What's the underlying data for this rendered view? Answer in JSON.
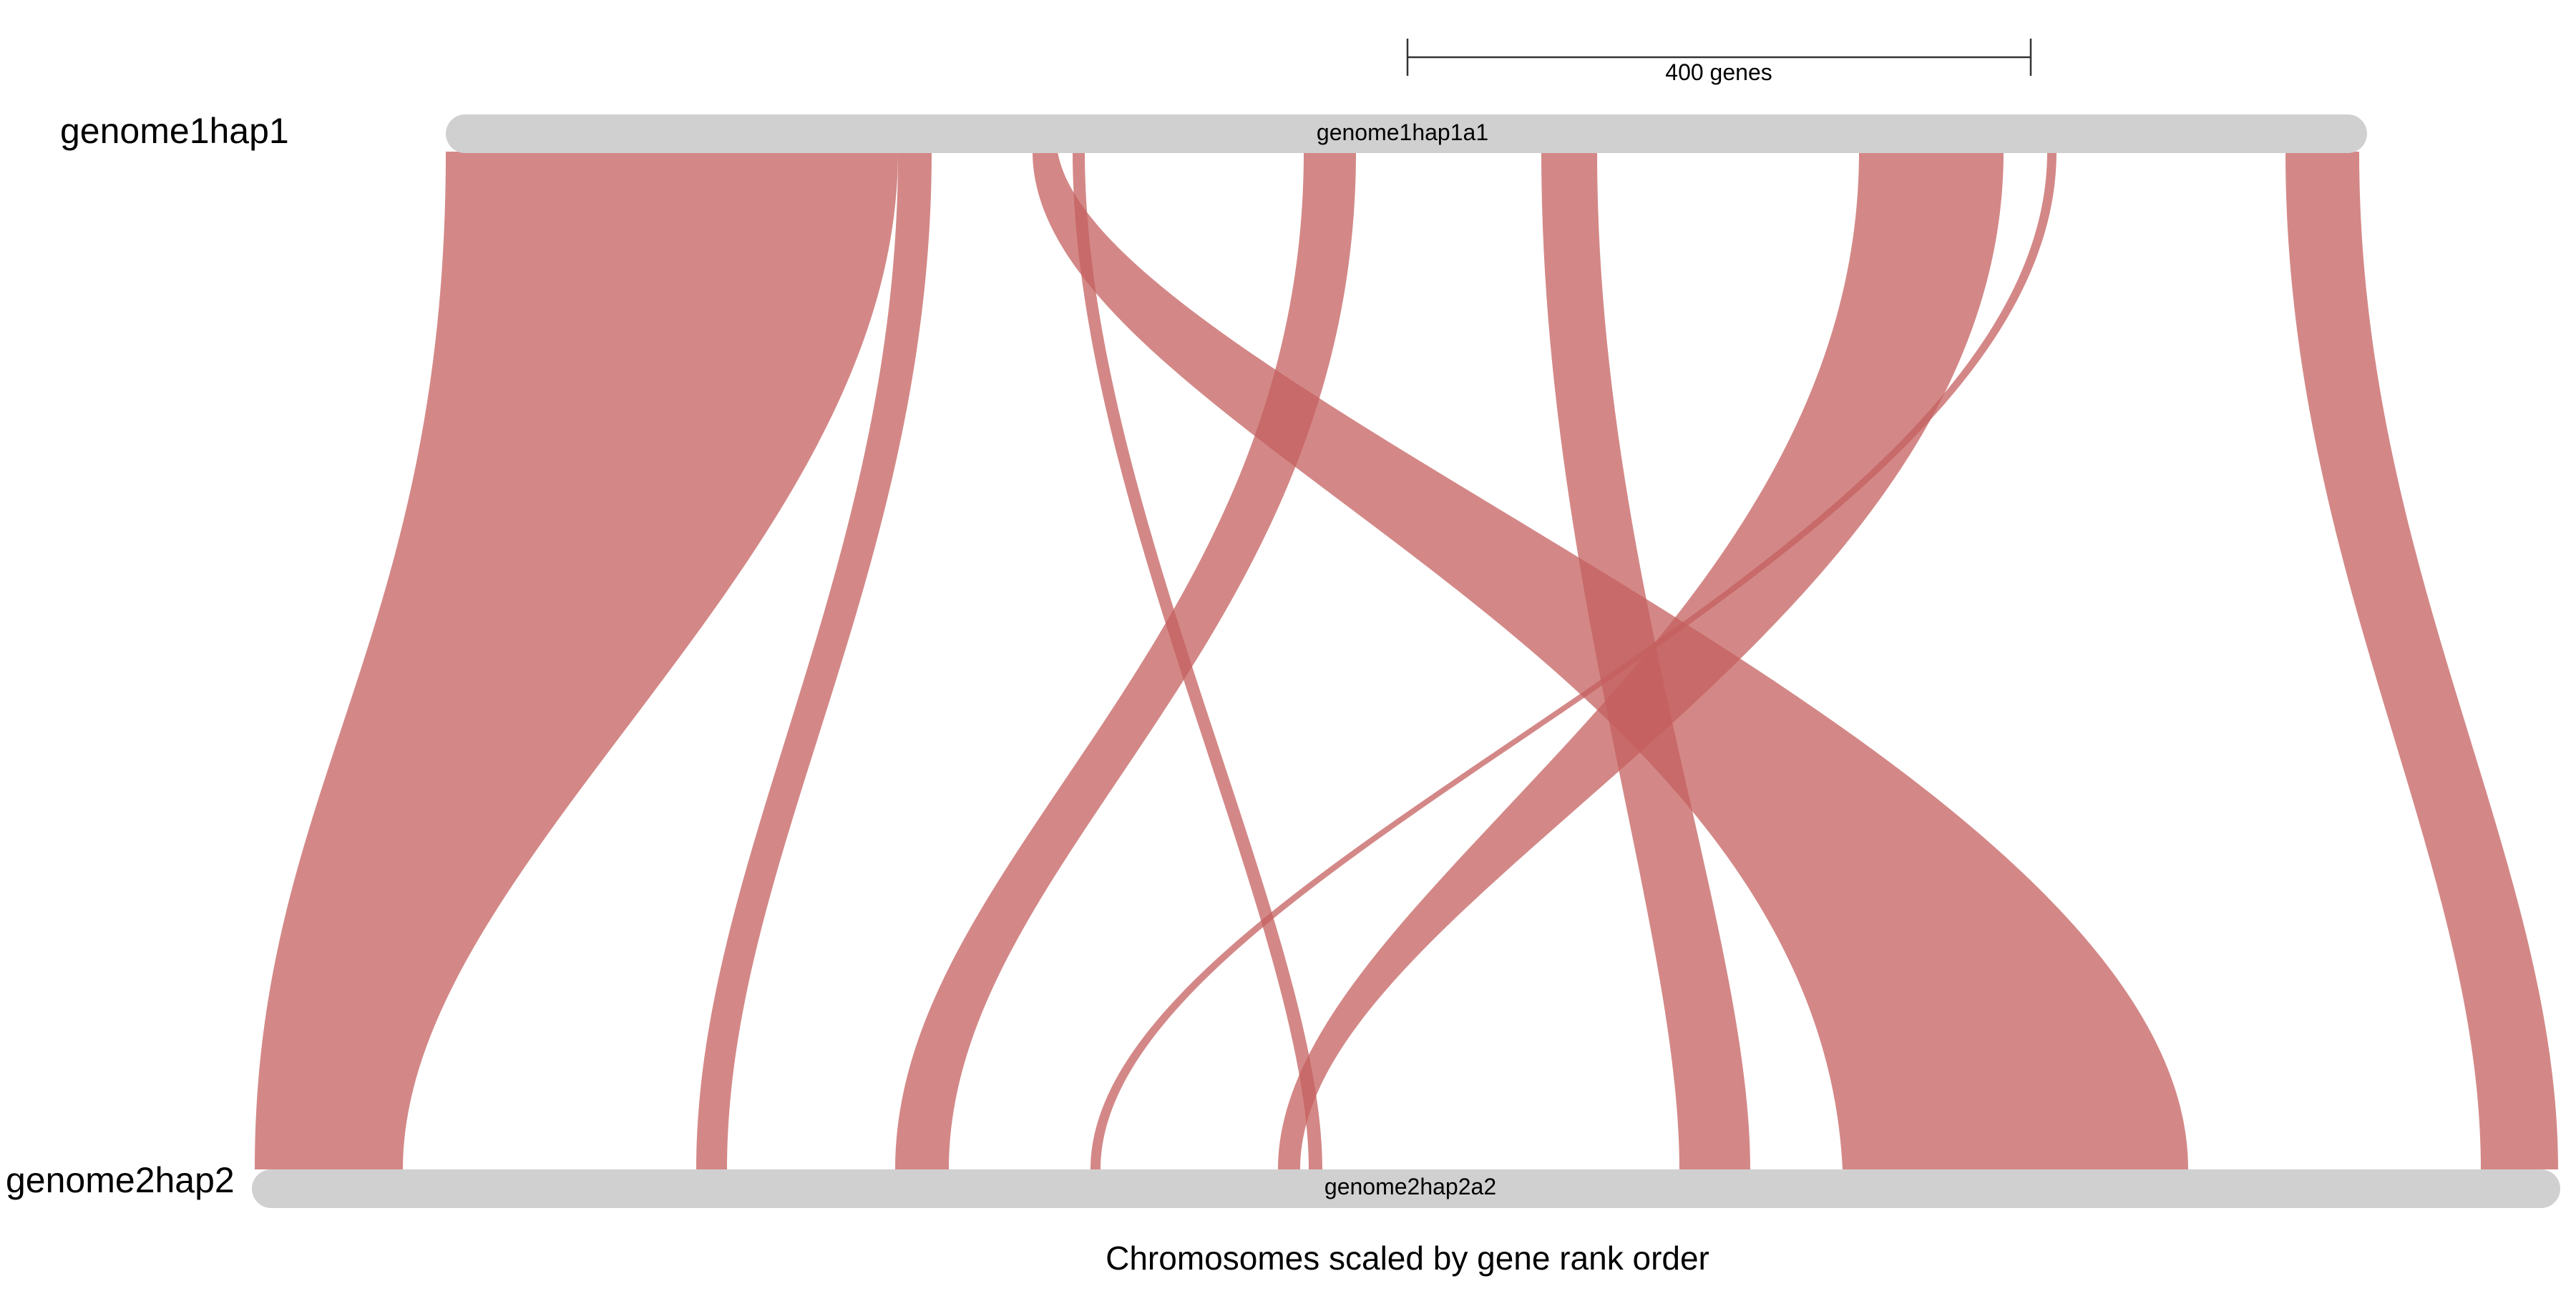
{
  "genomes": [
    {
      "label": "genome1hap1",
      "chromosome": "genome1hap1a1"
    },
    {
      "label": "genome2hap2",
      "chromosome": "genome2hap2a2"
    }
  ],
  "scale_bar": {
    "label": "400 genes"
  },
  "caption": "Chromosomes scaled by gene rank order",
  "colors": {
    "chromosome": "#d0d0d0",
    "ribbon": "#c4605f"
  }
}
